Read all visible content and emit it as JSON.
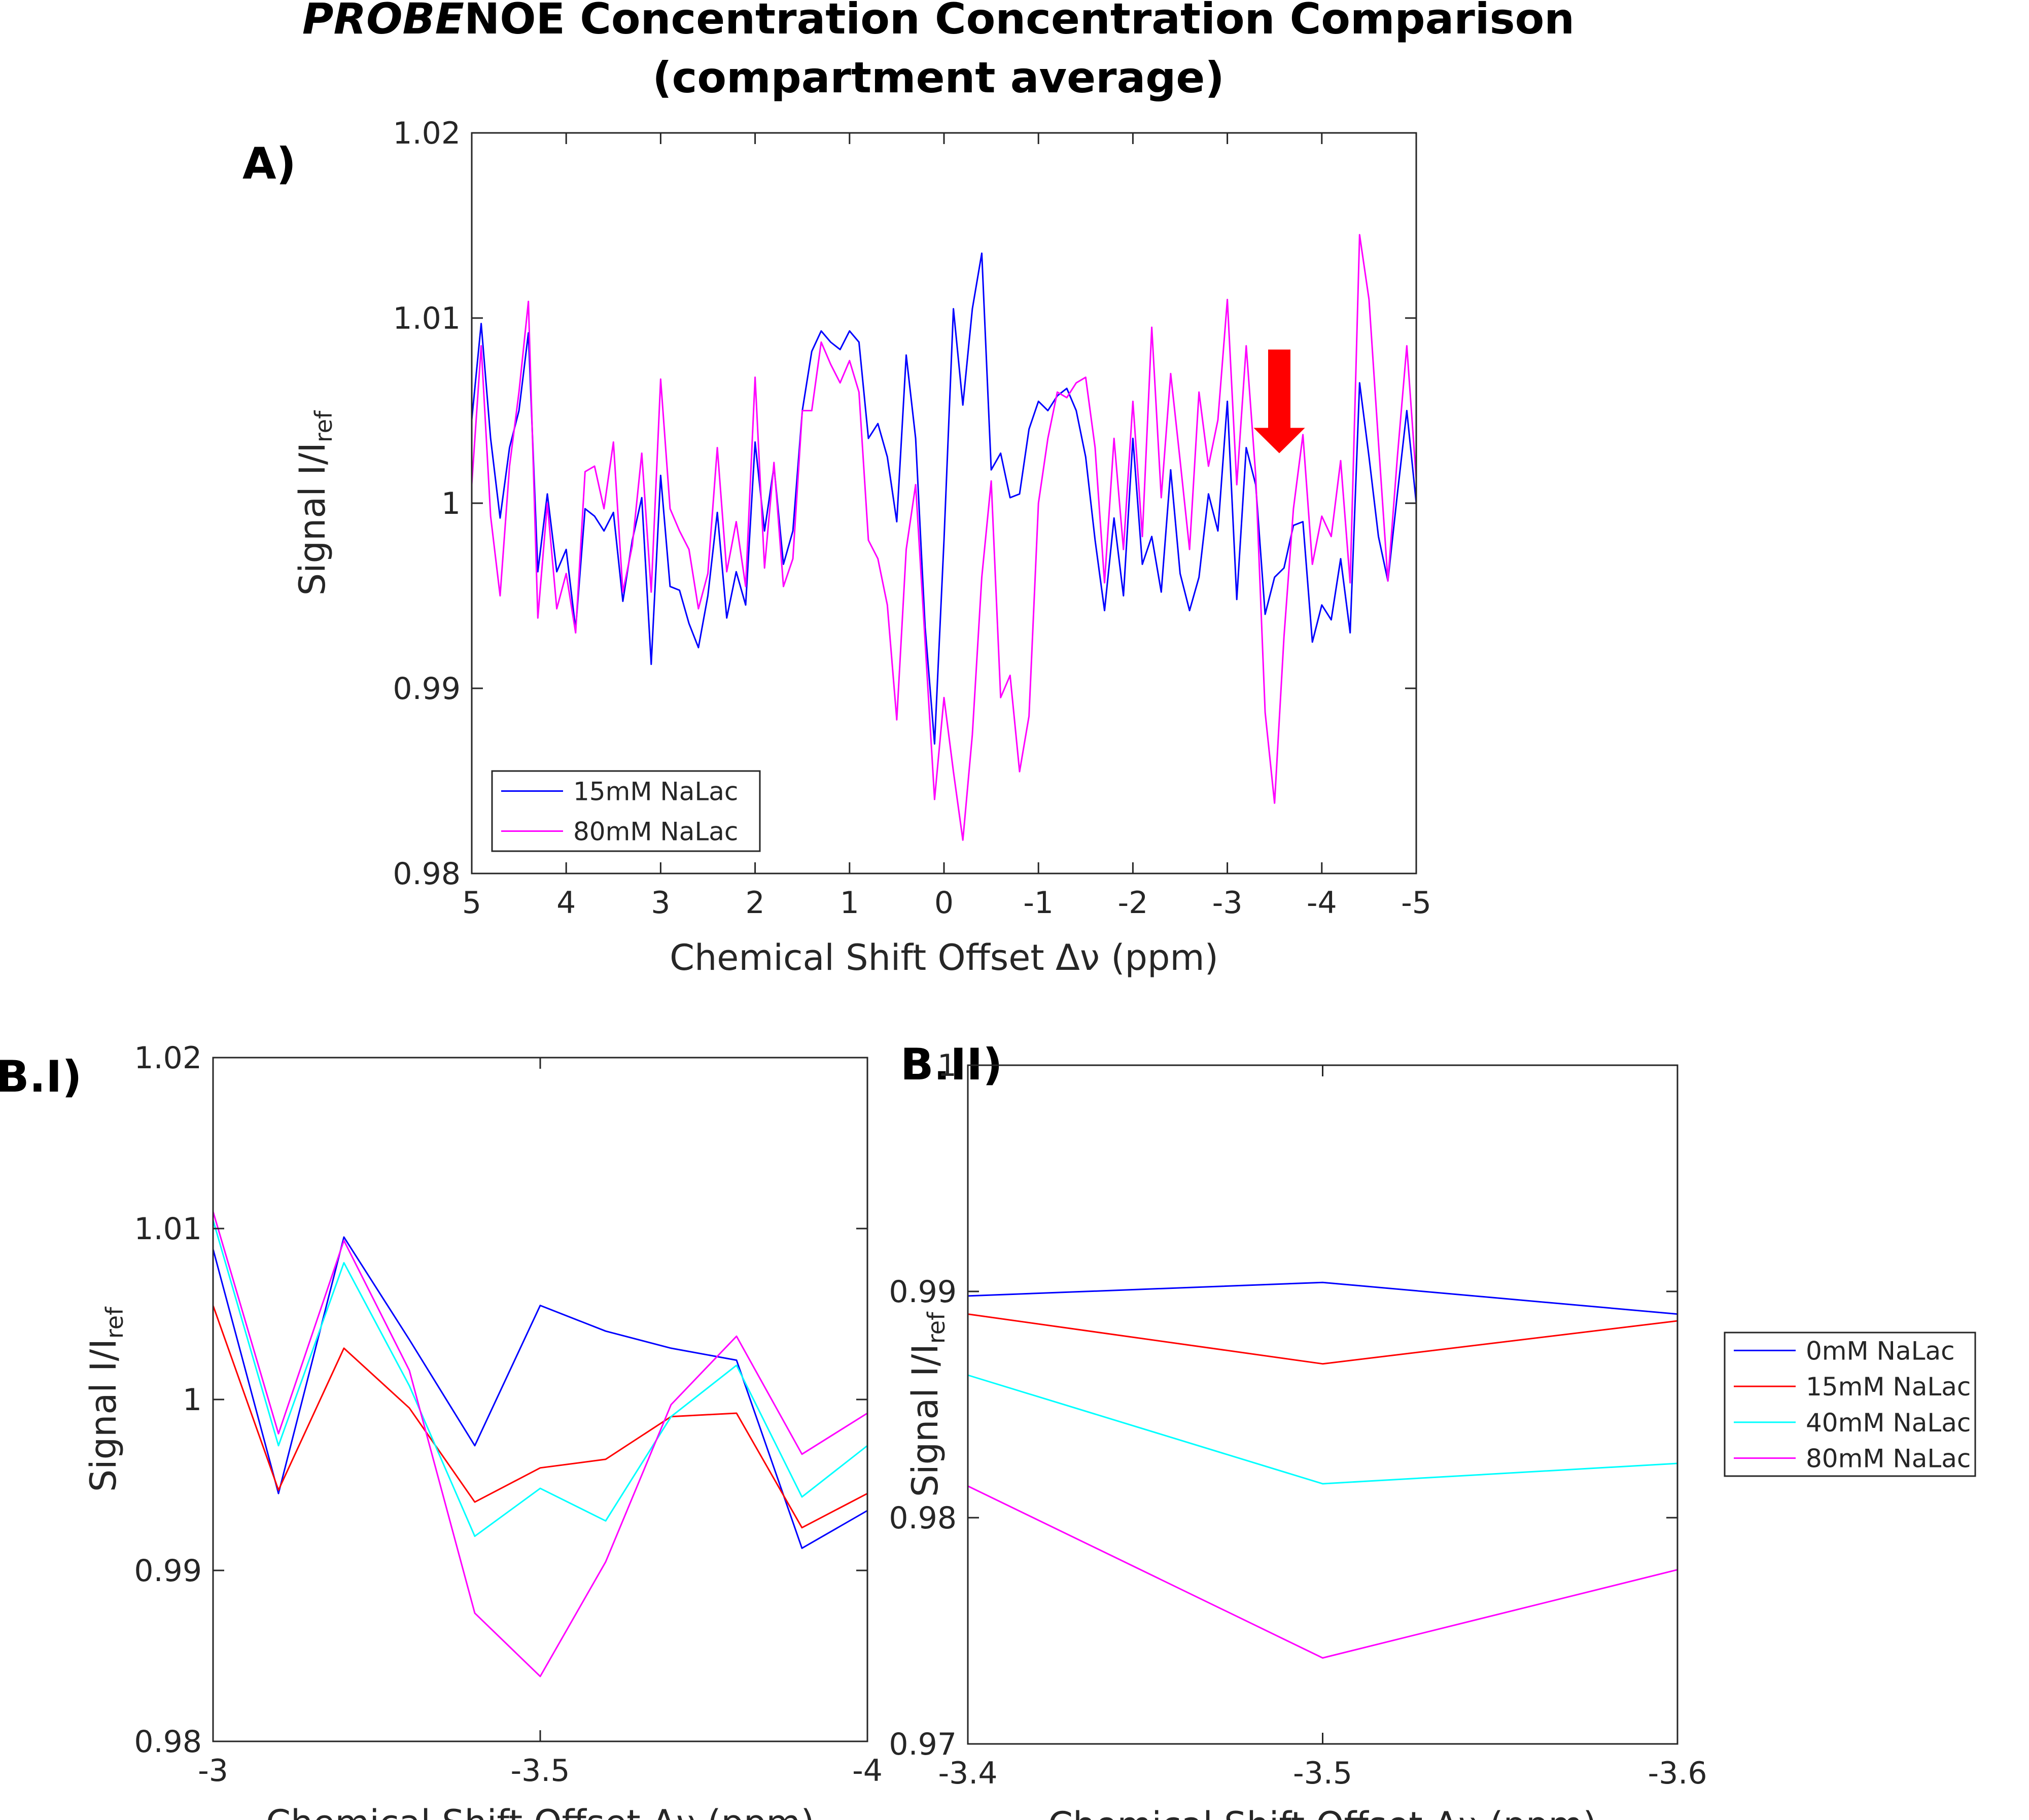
{
  "figure": {
    "title_italic": "PROBE",
    "title_rest": "NOE Concentration Concentration Comparison",
    "title_line2": "(compartment average)",
    "arrow_color": "#ff0000"
  },
  "chart_data": [
    {
      "id": "A",
      "type": "line",
      "panel_label": "A)",
      "title": "",
      "xlabel": "Chemical Shift Offset Δν (ppm)",
      "ylabel_main": "Signal I/I",
      "ylabel_sub": "ref",
      "xlim": [
        5,
        -5
      ],
      "ylim": [
        0.98,
        1.02
      ],
      "xticks": [
        5,
        4,
        3,
        2,
        1,
        0,
        -1,
        -2,
        -3,
        -4,
        -5
      ],
      "xtick_labels": [
        "5",
        "4",
        "3",
        "2",
        "1",
        "0",
        "-1",
        "-2",
        "-3",
        "-4",
        "-5"
      ],
      "yticks": [
        0.98,
        0.99,
        1,
        1.01,
        1.02
      ],
      "ytick_labels": [
        "0.98",
        "0.99",
        "1",
        "1.01",
        "1.02"
      ],
      "legend_position": "bottom-left",
      "annotation": {
        "type": "arrow",
        "x": -3.55,
        "y_from": 1.0083,
        "y_to": 1.0027,
        "color": "#ff0000"
      },
      "series": [
        {
          "name": "15mM NaLac",
          "color": "#0000ff",
          "x": [
            5.0,
            4.9,
            4.8,
            4.7,
            4.6,
            4.5,
            4.4,
            4.3,
            4.2,
            4.1,
            4.0,
            3.9,
            3.8,
            3.7,
            3.6,
            3.5,
            3.4,
            3.3,
            3.2,
            3.1,
            3.0,
            2.9,
            2.8,
            2.7,
            2.6,
            2.5,
            2.4,
            2.3,
            2.2,
            2.1,
            2.0,
            1.9,
            1.8,
            1.7,
            1.6,
            1.5,
            1.4,
            1.3,
            1.2,
            1.1,
            1.0,
            0.9,
            0.8,
            0.7,
            0.6,
            0.5,
            0.4,
            0.3,
            0.2,
            0.1,
            0.0,
            -0.1,
            -0.2,
            -0.3,
            -0.4,
            -0.5,
            -0.6,
            -0.7,
            -0.8,
            -0.9,
            -1.0,
            -1.1,
            -1.2,
            -1.3,
            -1.4,
            -1.5,
            -1.6,
            -1.7,
            -1.8,
            -1.9,
            -2.0,
            -2.1,
            -2.2,
            -2.3,
            -2.4,
            -2.5,
            -2.6,
            -2.7,
            -2.8,
            -2.9,
            -3.0,
            -3.1,
            -3.2,
            -3.3,
            -3.4,
            -3.5,
            -3.6,
            -3.7,
            -3.8,
            -3.9,
            -4.0,
            -4.1,
            -4.2,
            -4.3,
            -4.4,
            -4.5,
            -4.6,
            -4.7,
            -4.8,
            -4.9,
            -5.0
          ],
          "values": [
            1.0045,
            1.0097,
            1.0035,
            0.9992,
            1.003,
            1.005,
            1.0092,
            0.9963,
            1.0005,
            0.9963,
            0.9975,
            0.9932,
            0.9997,
            0.9993,
            0.9985,
            0.9995,
            0.9947,
            0.998,
            1.0003,
            0.9913,
            1.0015,
            0.9955,
            0.9953,
            0.9935,
            0.9922,
            0.995,
            0.9995,
            0.9938,
            0.9963,
            0.9945,
            1.0033,
            0.9985,
            1.002,
            0.9967,
            0.9985,
            1.005,
            1.0082,
            1.0093,
            1.0087,
            1.0083,
            1.0093,
            1.0087,
            1.0035,
            1.0043,
            1.0025,
            0.999,
            1.008,
            1.0035,
            0.9933,
            0.987,
            0.998,
            1.0105,
            1.0053,
            1.0105,
            1.0135,
            1.0018,
            1.0027,
            1.0003,
            1.0005,
            1.004,
            1.0055,
            1.005,
            1.0058,
            1.0062,
            1.005,
            1.0025,
            0.998,
            0.9942,
            0.9992,
            0.995,
            1.0035,
            0.9967,
            0.9982,
            0.9952,
            1.0018,
            0.9962,
            0.9942,
            0.996,
            1.0005,
            0.9985,
            1.0055,
            0.9948,
            1.003,
            1.001,
            0.994,
            0.996,
            0.9965,
            0.9988,
            0.999,
            0.9925,
            0.9945,
            0.9937,
            0.997,
            0.993,
            1.0065,
            1.0025,
            0.9982,
            0.9958,
            1.0005,
            1.005,
            1.0
          ]
        },
        {
          "name": "80mM NaLac",
          "color": "#ff00ff",
          "x": [
            5.0,
            4.9,
            4.8,
            4.7,
            4.6,
            4.5,
            4.4,
            4.3,
            4.2,
            4.1,
            4.0,
            3.9,
            3.8,
            3.7,
            3.6,
            3.5,
            3.4,
            3.3,
            3.2,
            3.1,
            3.0,
            2.9,
            2.8,
            2.7,
            2.6,
            2.5,
            2.4,
            2.3,
            2.2,
            2.1,
            2.0,
            1.9,
            1.8,
            1.7,
            1.6,
            1.5,
            1.4,
            1.3,
            1.2,
            1.1,
            1.0,
            0.9,
            0.8,
            0.7,
            0.6,
            0.5,
            0.4,
            0.3,
            0.2,
            0.1,
            0.0,
            -0.1,
            -0.2,
            -0.3,
            -0.4,
            -0.5,
            -0.6,
            -0.7,
            -0.8,
            -0.9,
            -1.0,
            -1.1,
            -1.2,
            -1.3,
            -1.4,
            -1.5,
            -1.6,
            -1.7,
            -1.8,
            -1.9,
            -2.0,
            -2.1,
            -2.2,
            -2.3,
            -2.4,
            -2.5,
            -2.6,
            -2.7,
            -2.8,
            -2.9,
            -3.0,
            -3.1,
            -3.2,
            -3.3,
            -3.4,
            -3.5,
            -3.6,
            -3.7,
            -3.8,
            -3.9,
            -4.0,
            -4.1,
            -4.2,
            -4.3,
            -4.4,
            -4.5,
            -4.6,
            -4.7,
            -4.8,
            -4.9,
            -5.0
          ],
          "values": [
            1.001,
            1.0085,
            0.9993,
            0.995,
            1.002,
            1.006,
            1.0109,
            0.9938,
            1.0,
            0.9943,
            0.9962,
            0.993,
            1.0017,
            1.002,
            0.9997,
            1.0033,
            0.9952,
            0.9977,
            1.0027,
            0.9952,
            1.0067,
            0.9997,
            0.9985,
            0.9975,
            0.9943,
            0.9962,
            1.003,
            0.9963,
            0.999,
            0.9955,
            1.0068,
            0.9965,
            1.0022,
            0.9955,
            0.997,
            1.005,
            1.005,
            1.0087,
            1.0075,
            1.0065,
            1.0077,
            1.006,
            0.998,
            0.997,
            0.9945,
            0.9883,
            0.9975,
            1.001,
            0.9925,
            0.984,
            0.9895,
            0.9855,
            0.9818,
            0.9875,
            0.996,
            1.0012,
            0.9895,
            0.9907,
            0.9855,
            0.9885,
            1.0,
            1.0035,
            1.006,
            1.0057,
            1.0065,
            1.0068,
            1.003,
            0.9957,
            1.0035,
            0.9975,
            1.0055,
            0.9982,
            1.0095,
            1.0003,
            1.007,
            1.0023,
            0.9975,
            1.006,
            1.002,
            1.0045,
            1.011,
            1.001,
            1.0085,
            1.0015,
            0.9887,
            0.9838,
            0.9928,
            0.9997,
            1.0037,
            0.9967,
            0.9993,
            0.9982,
            1.0023,
            0.9957,
            1.0145,
            1.011,
            1.0033,
            0.9958,
            1.0025,
            1.0085,
            1.0013
          ]
        }
      ]
    },
    {
      "id": "B.I",
      "type": "line",
      "panel_label": "B.I)",
      "title": "",
      "xlabel": "Chemical Shift Offset Δν (ppm)",
      "ylabel_main": "Signal I/I",
      "ylabel_sub": "ref",
      "xlim": [
        -3,
        -4
      ],
      "ylim": [
        0.98,
        1.02
      ],
      "xticks": [
        -3,
        -3.5,
        -4
      ],
      "xtick_labels": [
        "-3",
        "-3.5",
        "-4"
      ],
      "yticks": [
        0.98,
        0.99,
        1,
        1.01,
        1.02
      ],
      "ytick_labels": [
        "0.98",
        "0.99",
        "1",
        "1.01",
        "1.02"
      ],
      "series": [
        {
          "name": "0mM NaLac",
          "color": "#0000ff",
          "x": [
            -3.0,
            -3.1,
            -3.2,
            -3.3,
            -3.4,
            -3.5,
            -3.6,
            -3.7,
            -3.8,
            -3.9,
            -4.0
          ],
          "values": [
            1.0088,
            0.9945,
            1.0095,
            1.0035,
            0.9973,
            1.0055,
            1.004,
            1.003,
            1.0023,
            0.9913,
            0.9935
          ]
        },
        {
          "name": "15mM NaLac",
          "color": "#ff0000",
          "x": [
            -3.0,
            -3.1,
            -3.2,
            -3.3,
            -3.4,
            -3.5,
            -3.6,
            -3.7,
            -3.8,
            -3.9,
            -4.0
          ],
          "values": [
            1.0055,
            0.9947,
            1.003,
            0.9995,
            0.994,
            0.996,
            0.9965,
            0.999,
            0.9992,
            0.9925,
            0.9945
          ]
        },
        {
          "name": "40mM NaLac",
          "color": "#00ffff",
          "x": [
            -3.0,
            -3.1,
            -3.2,
            -3.3,
            -3.4,
            -3.5,
            -3.6,
            -3.7,
            -3.8,
            -3.9,
            -4.0
          ],
          "values": [
            1.0105,
            0.9973,
            1.008,
            1.0008,
            0.992,
            0.9948,
            0.9929,
            0.999,
            1.002,
            0.9943,
            0.9973
          ]
        },
        {
          "name": "80mM NaLac",
          "color": "#ff00ff",
          "x": [
            -3.0,
            -3.1,
            -3.2,
            -3.3,
            -3.4,
            -3.5,
            -3.6,
            -3.7,
            -3.8,
            -3.9,
            -4.0
          ],
          "values": [
            1.011,
            0.998,
            1.0093,
            1.0017,
            0.9875,
            0.9838,
            0.9905,
            0.9997,
            1.0037,
            0.9968,
            0.9992
          ]
        }
      ]
    },
    {
      "id": "B.II",
      "type": "line",
      "panel_label": "B.II)",
      "title": "",
      "xlabel": "Chemical Shift Offset Δν (ppm)",
      "ylabel_main": "Signal I/I",
      "ylabel_sub": "ref",
      "xlim": [
        -3.4,
        -3.6
      ],
      "ylim": [
        0.97,
        1.0
      ],
      "xticks": [
        -3.4,
        -3.5,
        -3.6
      ],
      "xtick_labels": [
        "-3.4",
        "-3.5",
        "-3.6"
      ],
      "yticks": [
        0.97,
        0.98,
        0.99,
        1
      ],
      "ytick_labels": [
        "0.97",
        "0.98",
        "0.99",
        "1"
      ],
      "legend_position": "outside-right",
      "series": [
        {
          "name": "0mM NaLac",
          "color": "#0000ff",
          "x": [
            -3.4,
            -3.5,
            -3.6
          ],
          "values": [
            0.9898,
            0.9904,
            0.989
          ]
        },
        {
          "name": "15mM NaLac",
          "color": "#ff0000",
          "x": [
            -3.4,
            -3.5,
            -3.6
          ],
          "values": [
            0.989,
            0.9868,
            0.9887
          ]
        },
        {
          "name": "40mM NaLac",
          "color": "#00ffff",
          "x": [
            -3.4,
            -3.5,
            -3.6
          ],
          "values": [
            0.9863,
            0.9815,
            0.9824
          ]
        },
        {
          "name": "80mM NaLac",
          "color": "#ff00ff",
          "x": [
            -3.4,
            -3.5,
            -3.6
          ],
          "values": [
            0.9814,
            0.9738,
            0.9777
          ]
        }
      ]
    }
  ]
}
